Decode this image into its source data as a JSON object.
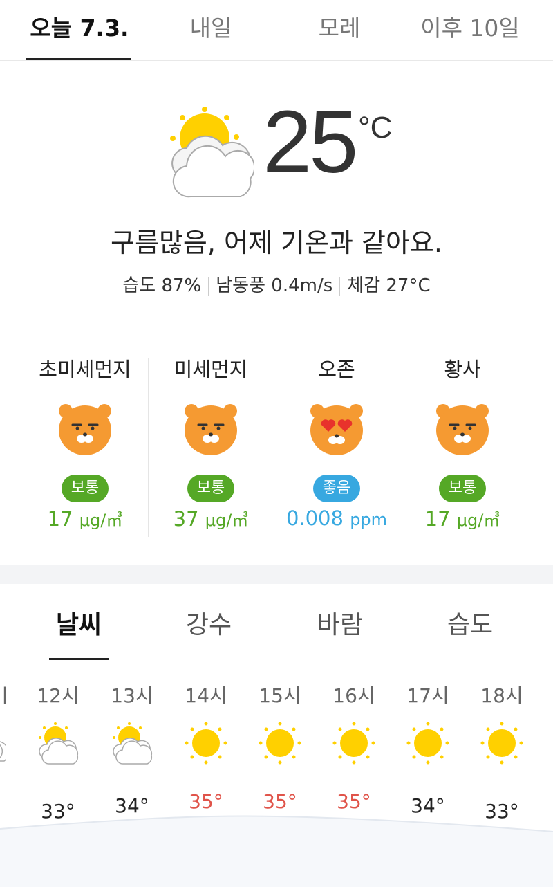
{
  "tabs": [
    {
      "label": "오늘 7.3.",
      "active": true
    },
    {
      "label": "내일",
      "active": false
    },
    {
      "label": "모레",
      "active": false
    },
    {
      "label": "이후 10일",
      "active": false
    }
  ],
  "current": {
    "icon": "partly-cloudy-icon",
    "temperature": "25",
    "unit": "°C",
    "summary": "구름많음, 어제 기온과 같아요.",
    "humidity": "습도 87%",
    "wind": "남동풍 0.4m/s",
    "feels_like": "체감 27°C"
  },
  "air_quality": [
    {
      "title": "초미세먼지",
      "status": "보통",
      "value": "17",
      "unit": "μg/㎥",
      "color": "#55a826",
      "face": "normal"
    },
    {
      "title": "미세먼지",
      "status": "보통",
      "value": "37",
      "unit": "μg/㎥",
      "color": "#55a826",
      "face": "normal"
    },
    {
      "title": "오존",
      "status": "좋음",
      "value": "0.008",
      "unit": "ppm",
      "color": "#37a8e0",
      "face": "heart-eyes"
    },
    {
      "title": "황사",
      "status": "보통",
      "value": "17",
      "unit": "μg/㎥",
      "color": "#55a826",
      "face": "normal"
    }
  ],
  "sub_tabs": [
    {
      "label": "날씨",
      "active": true
    },
    {
      "label": "강수",
      "active": false
    },
    {
      "label": "바람",
      "active": false
    },
    {
      "label": "습도",
      "active": false
    }
  ],
  "hourly": [
    {
      "hour": "12시",
      "icon": "partly-cloudy-icon",
      "temp": "33°",
      "hot": false
    },
    {
      "hour": "13시",
      "icon": "partly-cloudy-icon",
      "temp": "34°",
      "hot": false
    },
    {
      "hour": "14시",
      "icon": "sun-icon",
      "temp": "35°",
      "hot": true
    },
    {
      "hour": "15시",
      "icon": "sun-icon",
      "temp": "35°",
      "hot": true
    },
    {
      "hour": "16시",
      "icon": "sun-icon",
      "temp": "35°",
      "hot": true
    },
    {
      "hour": "17시",
      "icon": "sun-icon",
      "temp": "34°",
      "hot": false
    },
    {
      "hour": "18시",
      "icon": "sun-icon",
      "temp": "33°",
      "hot": false
    }
  ],
  "colors": {
    "hot": "#e0544a",
    "accent_green": "#55a826",
    "accent_blue": "#37a8e0",
    "sun": "#ffd000",
    "face": "#f59a32"
  }
}
